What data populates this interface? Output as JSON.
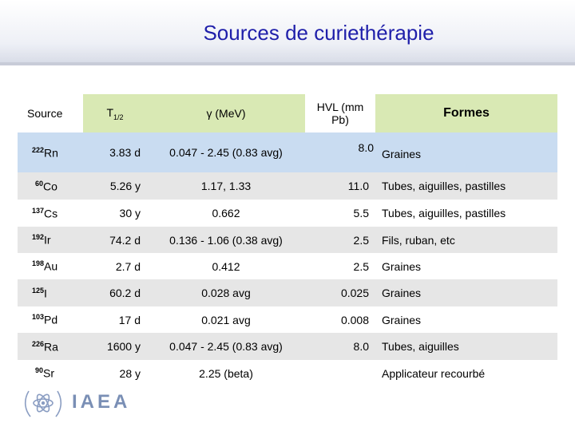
{
  "title": "Sources de curiethérapie",
  "headers": {
    "source": "Source",
    "t_main": "T",
    "t_sub": "1/2",
    "gamma": "γ (MeV)",
    "hvl": "HVL (mm Pb)",
    "formes": "Formes"
  },
  "rows": [
    {
      "mass": "222",
      "el": "Rn",
      "t": "3.83 d",
      "g": "0.047 - 2.45 (0.83 avg)",
      "hvl": "8.0",
      "f": "Graines"
    },
    {
      "mass": "60",
      "el": "Co",
      "t": "5.26 y",
      "g": "1.17, 1.33",
      "hvl": "11.0",
      "f": "Tubes, aiguilles, pastilles"
    },
    {
      "mass": "137",
      "el": "Cs",
      "t": "30 y",
      "g": "0.662",
      "hvl": "5.5",
      "f": "Tubes, aiguilles, pastilles"
    },
    {
      "mass": "192",
      "el": "Ir",
      "t": "74.2 d",
      "g": "0.136 - 1.06 (0.38 avg)",
      "hvl": "2.5",
      "f": "Fils, ruban, etc"
    },
    {
      "mass": "198",
      "el": "Au",
      "t": "2.7 d",
      "g": "0.412",
      "hvl": "2.5",
      "f": "Graines"
    },
    {
      "mass": "125",
      "el": "I",
      "t": "60.2 d",
      "g": "0.028 avg",
      "hvl": "0.025",
      "f": "Graines"
    },
    {
      "mass": "103",
      "el": "Pd",
      "t": "17 d",
      "g": "0.021 avg",
      "hvl": "0.008",
      "f": "Graines"
    },
    {
      "mass": "226",
      "el": "Ra",
      "t": "1600 y",
      "g": "0.047 - 2.45 (0.83 avg)",
      "hvl": "8.0",
      "f": "Tubes, aiguilles"
    },
    {
      "mass": "90",
      "el": "Sr",
      "t": "28 y",
      "g": "2.25 (beta)",
      "hvl": "",
      "f": "Applicateur recourbé"
    }
  ],
  "logo_text": "IAEA",
  "colors": {
    "title": "#1f1faa",
    "header": "#d9e9b4",
    "row_blue": "#c9dcf1",
    "row_grey": "#e6e6e6"
  }
}
